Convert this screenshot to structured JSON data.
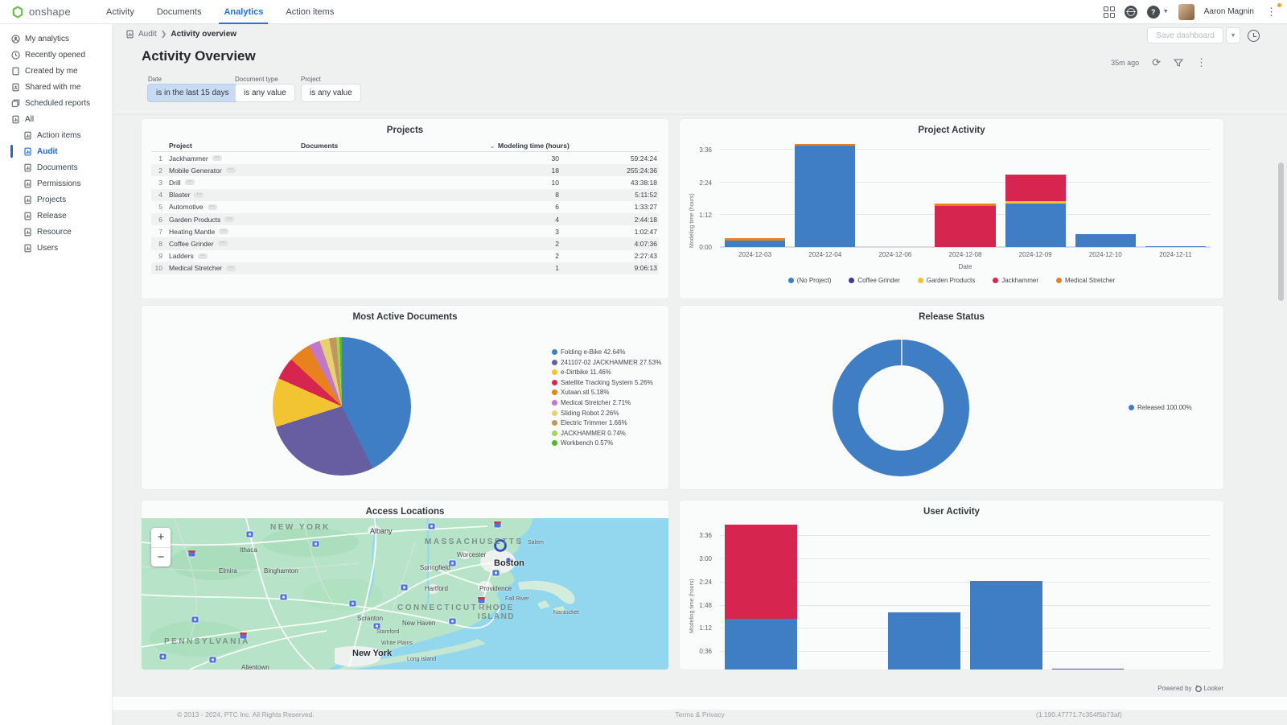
{
  "topnav": {
    "brand": "onshape",
    "items": [
      {
        "label": "Activity"
      },
      {
        "label": "Documents"
      },
      {
        "label": "Analytics",
        "active": true
      },
      {
        "label": "Action items"
      }
    ],
    "user_name": "Aaron Magnin",
    "accent_color": "#2471e8",
    "brand_color": "#6ebe4b"
  },
  "sidebar": {
    "items": [
      {
        "label": "My analytics",
        "icon": "person-circle-icon"
      },
      {
        "label": "Recently opened",
        "icon": "clock-icon"
      },
      {
        "label": "Created by me",
        "icon": "document-icon"
      },
      {
        "label": "Shared with me",
        "icon": "document-person-icon"
      },
      {
        "label": "Scheduled reports",
        "icon": "scheduled-icon"
      },
      {
        "label": "All",
        "icon": "report-icon"
      }
    ],
    "sub_items": [
      {
        "label": "Action items"
      },
      {
        "label": "Audit",
        "active": true
      },
      {
        "label": "Documents"
      },
      {
        "label": "Permissions"
      },
      {
        "label": "Projects"
      },
      {
        "label": "Release"
      },
      {
        "label": "Resource"
      },
      {
        "label": "Users"
      }
    ],
    "active_color": "#1f6ad1"
  },
  "breadcrumb": {
    "root": "Audit",
    "current": "Activity overview"
  },
  "header": {
    "title": "Activity Overview",
    "save_button": "Save dashboard",
    "last_refresh": "35m ago"
  },
  "filters": [
    {
      "label": "Date",
      "value": "is in the last 15 days",
      "selected": true
    },
    {
      "label": "Document type",
      "value": "is any value",
      "selected": false
    },
    {
      "label": "Project",
      "value": "is any value",
      "selected": false
    }
  ],
  "footer": {
    "copyright": "© 2013 - 2024, PTC Inc. All Rights Reserved.",
    "terms": "Terms & Privacy",
    "version": "(1.190.47771.7c354f5b73af)",
    "powered_by": "Powered by",
    "powered_brand": "Looker"
  },
  "chart_data": [
    {
      "id": "projects_table",
      "type": "table",
      "title": "Projects",
      "columns": [
        "Project",
        "Documents",
        "Modeling time (hours)"
      ],
      "sorted_desc_indicator": "⌄",
      "rows": [
        {
          "rank": 1,
          "project": "Jackhammer",
          "documents": 30,
          "modeling_time": "59:24:24"
        },
        {
          "rank": 2,
          "project": "Mobile Generator",
          "documents": 18,
          "modeling_time": "255:24:36"
        },
        {
          "rank": 3,
          "project": "Drill",
          "documents": 10,
          "modeling_time": "43:38:18"
        },
        {
          "rank": 4,
          "project": "Blaster",
          "documents": 8,
          "modeling_time": "5:11:52"
        },
        {
          "rank": 5,
          "project": "Automotive",
          "documents": 6,
          "modeling_time": "1:33:27"
        },
        {
          "rank": 6,
          "project": "Garden Products",
          "documents": 4,
          "modeling_time": "2:44:18"
        },
        {
          "rank": 7,
          "project": "Heating Mantle",
          "documents": 3,
          "modeling_time": "1:02:47"
        },
        {
          "rank": 8,
          "project": "Coffee Grinder",
          "documents": 2,
          "modeling_time": "4:07:36"
        },
        {
          "rank": 9,
          "project": "Ladders",
          "documents": 2,
          "modeling_time": "2:27:43"
        },
        {
          "rank": 10,
          "project": "Medical Stretcher",
          "documents": 1,
          "modeling_time": "9:06:13"
        }
      ]
    },
    {
      "id": "project_activity",
      "type": "bar",
      "stacked": true,
      "title": "Project Activity",
      "xlabel": "Date",
      "ylabel": "Modeling time (hours)",
      "categories": [
        "2024-12-03",
        "2024-12-04",
        "2024-12-06",
        "2024-12-08",
        "2024-12-09",
        "2024-12-10",
        "2024-12-11"
      ],
      "y_ticks": [
        {
          "label": "0:00",
          "minutes": 0
        },
        {
          "label": "1:12",
          "minutes": 72
        },
        {
          "label": "2:24",
          "minutes": 144
        },
        {
          "label": "3:36",
          "minutes": 216
        }
      ],
      "y_max_minutes": 240,
      "grid": true,
      "legend_position": "bottom",
      "series": [
        {
          "name": "(No Project)",
          "color": "#3f7ec4",
          "values_minutes": [
            14,
            226,
            0,
            0,
            97,
            28,
            2
          ]
        },
        {
          "name": "Coffee Grinder",
          "color": "#3c3a94",
          "values_minutes": [
            0,
            0,
            0,
            0,
            0,
            0,
            0
          ]
        },
        {
          "name": "Garden Products",
          "color": "#f3c431",
          "values_minutes": [
            0,
            0,
            0,
            0,
            6,
            0,
            0
          ]
        },
        {
          "name": "Jackhammer",
          "color": "#d6254f",
          "values_minutes": [
            0,
            0,
            0,
            92,
            59,
            0,
            0
          ]
        },
        {
          "name": "Medical Stretcher",
          "color": "#e8821e",
          "values_minutes": [
            5,
            4,
            0,
            4,
            0,
            0,
            0
          ]
        }
      ]
    },
    {
      "id": "most_active_documents",
      "type": "pie",
      "title": "Most Active Documents",
      "legend_position": "right",
      "slices": [
        {
          "label": "Folding e-Bike",
          "pct": 42.64,
          "color": "#3f7ec4"
        },
        {
          "label": "241107-02 JACKHAMMER",
          "pct": 27.53,
          "color": "#665ea0"
        },
        {
          "label": "e-Dirtbike",
          "pct": 11.46,
          "color": "#f3c431"
        },
        {
          "label": "Satellite Tracking System",
          "pct": 5.26,
          "color": "#d6254f"
        },
        {
          "label": "Xutaan.stl",
          "pct": 5.18,
          "color": "#e8821e"
        },
        {
          "label": "Medical Stretcher",
          "pct": 2.71,
          "color": "#c178c9"
        },
        {
          "label": "Sliding Robot",
          "pct": 2.26,
          "color": "#e7d071"
        },
        {
          "label": "Electric Trimmer",
          "pct": 1.66,
          "color": "#c1975f"
        },
        {
          "label": "JACKHAMMER",
          "pct": 0.74,
          "color": "#a5d45a"
        },
        {
          "label": "Workbench",
          "pct": 0.57,
          "color": "#53b82e"
        }
      ]
    },
    {
      "id": "release_status",
      "type": "pie",
      "subtype": "donut",
      "title": "Release Status",
      "legend_position": "right",
      "slices": [
        {
          "label": "Released",
          "pct": 100.0,
          "color": "#3f7ec4"
        }
      ]
    },
    {
      "id": "access_locations",
      "type": "map",
      "title": "Access Locations",
      "region": "Northeastern United States",
      "zoom_in_label": "+",
      "zoom_out_label": "−",
      "access_markers": [
        {
          "name": "boston-area-cluster"
        },
        {
          "name": "boston-area-point"
        }
      ],
      "map_labels": {
        "states": [
          {
            "name": "NEW YORK",
            "x": 160,
            "y": 6
          },
          {
            "name": "MASSACHUSETTS",
            "x": 352,
            "y": 24
          },
          {
            "name": "CONNECTICUT",
            "x": 318,
            "y": 106
          },
          {
            "name": "RHODE ISLAND",
            "x": 414,
            "y": 106,
            "two_line": true
          },
          {
            "name": "PENNSYLVANIA",
            "x": 28,
            "y": 148
          }
        ],
        "cities": [
          {
            "name": "Albany",
            "x": 284,
            "y": 11,
            "size": "md"
          },
          {
            "name": "Ithaca",
            "x": 122,
            "y": 35,
            "size": "sm"
          },
          {
            "name": "Binghamton",
            "x": 152,
            "y": 61,
            "size": "sm"
          },
          {
            "name": "Elmira",
            "x": 96,
            "y": 61,
            "size": "sm"
          },
          {
            "name": "Scranton",
            "x": 268,
            "y": 120,
            "size": "sm"
          },
          {
            "name": "Worcester",
            "x": 392,
            "y": 41,
            "size": "sm"
          },
          {
            "name": "Springfield",
            "x": 346,
            "y": 57,
            "size": "sm"
          },
          {
            "name": "Boston",
            "x": 438,
            "y": 50,
            "size": "lg"
          },
          {
            "name": "Hartford",
            "x": 352,
            "y": 83,
            "size": "sm"
          },
          {
            "name": "Providence",
            "x": 420,
            "y": 83,
            "size": "sm"
          },
          {
            "name": "Fall River",
            "x": 452,
            "y": 97,
            "size": "xs"
          },
          {
            "name": "New Haven",
            "x": 324,
            "y": 126,
            "size": "sm"
          },
          {
            "name": "Stamford",
            "x": 292,
            "y": 138,
            "size": "xs"
          },
          {
            "name": "White Plains",
            "x": 298,
            "y": 152,
            "size": "xs"
          },
          {
            "name": "New York",
            "x": 262,
            "y": 162,
            "size": "lg"
          },
          {
            "name": "Long Island",
            "x": 330,
            "y": 172,
            "size": "xs"
          },
          {
            "name": "Nantucket",
            "x": 512,
            "y": 114,
            "size": "xs"
          },
          {
            "name": "Salem",
            "x": 480,
            "y": 27,
            "size": "xs"
          },
          {
            "name": "Allentown",
            "x": 124,
            "y": 181,
            "size": "sm"
          }
        ]
      }
    },
    {
      "id": "user_activity",
      "type": "bar",
      "stacked": true,
      "title": "User Activity",
      "ylabel": "Modeling time (hours)",
      "x_labels_visible": false,
      "categories": [
        "",
        "",
        "",
        "",
        "",
        ""
      ],
      "y_ticks": [
        {
          "label": "0:36",
          "minutes": 36
        },
        {
          "label": "1:12",
          "minutes": 72
        },
        {
          "label": "1:48",
          "minutes": 108
        },
        {
          "label": "2:24",
          "minutes": 144
        },
        {
          "label": "3:00",
          "minutes": 180
        },
        {
          "label": "3:36",
          "minutes": 216
        }
      ],
      "y_max_minutes": 241,
      "grid": true,
      "series": [
        {
          "name": "series-blue",
          "color": "#3f7ec4",
          "values_minutes": [
            87,
            0,
            98,
            146,
            0,
            0
          ]
        },
        {
          "name": "series-red",
          "color": "#d6254f",
          "values_minutes": [
            147,
            0,
            0,
            0,
            0,
            0
          ]
        },
        {
          "name": "series-purple",
          "color": "#5c4f9c",
          "values_minutes": [
            0,
            0,
            0,
            0,
            10,
            0
          ]
        }
      ]
    }
  ]
}
